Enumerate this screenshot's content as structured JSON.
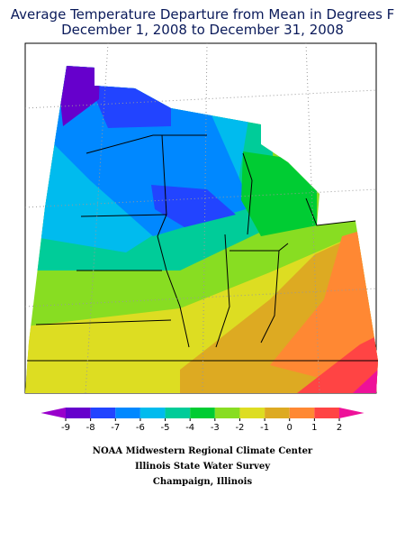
{
  "title": [
    "Average Temperature Departure from Mean in Degrees F",
    "December 1, 2008 to December 31, 2008"
  ],
  "legend": {
    "ticks": [
      -9,
      -8,
      -7,
      -6,
      -5,
      -4,
      -3,
      -2,
      -1,
      0,
      1,
      2
    ],
    "colors": [
      "#9900cc",
      "#6600cc",
      "#2244ff",
      "#0088ff",
      "#00bbee",
      "#00cc99",
      "#00cc33",
      "#88dd22",
      "#dddd22",
      "#ddaa22",
      "#ff8833",
      "#ff4444",
      "#ee1199"
    ]
  },
  "credits": [
    "NOAA Midwestern Regional Climate Center",
    "Illinois State Water Survey",
    "Champaign, Illinois"
  ]
}
